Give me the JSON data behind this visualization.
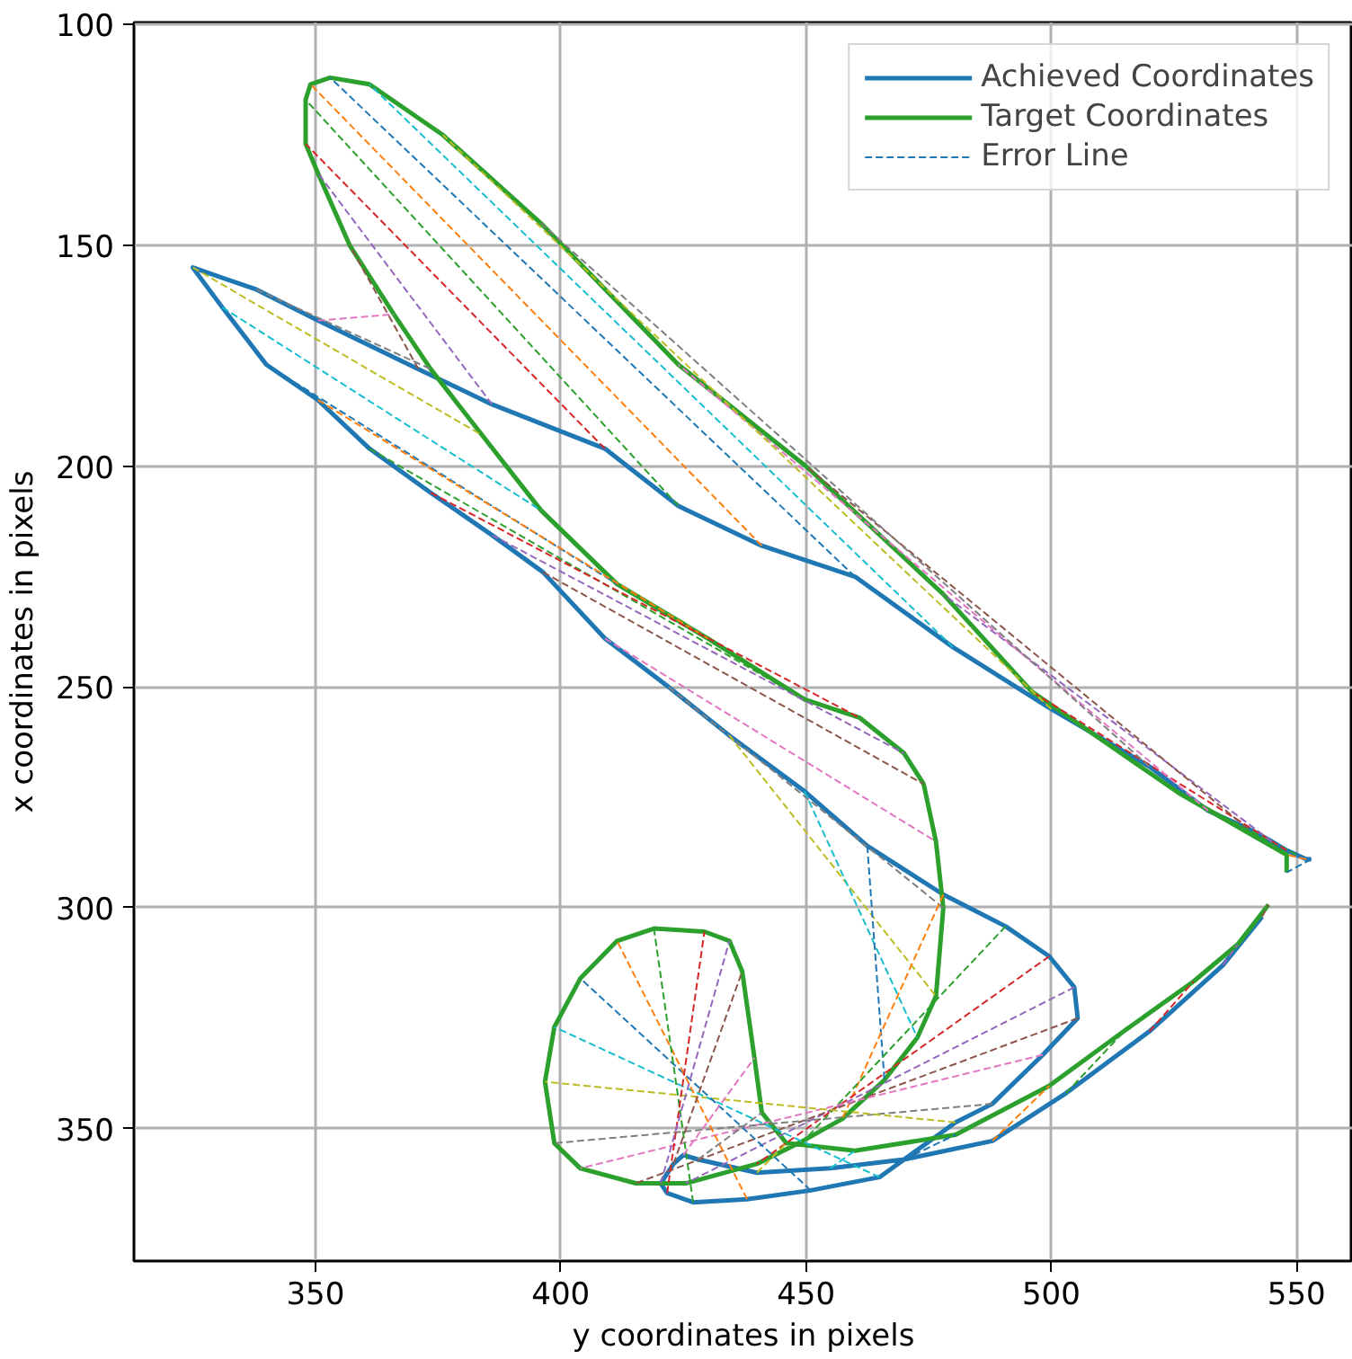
{
  "chart_data": {
    "type": "line",
    "xlabel": "y coordinates in pixels",
    "ylabel": "x coordinates in pixels",
    "xlim": [
      313,
      561.5
    ],
    "ylim": [
      380,
      99.5
    ],
    "xticks": [
      350,
      400,
      450,
      500,
      550
    ],
    "yticks": [
      100,
      150,
      200,
      250,
      300,
      350
    ],
    "grid": true,
    "legend": "top right",
    "marker": "none",
    "series": [
      {
        "name": "Achieved Coordinates",
        "color": "#1f77b4",
        "line_style": "solid",
        "x": [
          553,
          552,
          550,
          548,
          545,
          540,
          532,
          520,
          500,
          480,
          460,
          441,
          424,
          409,
          386,
          371,
          350.5,
          338,
          325,
          331,
          340,
          350.5,
          361,
          373.5,
          386,
          396.4,
          409,
          422,
          434.4,
          449.7,
          462.5,
          478,
          490.7,
          499.6,
          504.7,
          505.4,
          498.3,
          488,
          480.5,
          465,
          451,
          438,
          427,
          421.7,
          420.4,
          423,
          425,
          428,
          440,
          455,
          470,
          488,
          503,
          520,
          535,
          543
        ],
        "values": [
          289,
          289,
          288,
          287,
          285,
          282,
          278,
          268,
          255,
          241,
          225,
          218,
          209,
          196,
          186,
          178,
          167,
          160,
          155,
          164,
          177,
          185,
          196,
          206,
          215.6,
          224,
          239,
          250,
          261,
          273.6,
          286,
          297,
          304.2,
          311,
          318,
          325,
          333.3,
          344.4,
          348.6,
          361,
          364,
          366,
          366.7,
          364.6,
          362.4,
          358,
          356,
          357,
          360,
          359,
          357,
          352.8,
          342,
          328,
          313,
          302
        ]
      },
      {
        "name": "Target Coordinates",
        "color": "#2ca02c",
        "line_style": "solid",
        "x": [
          548,
          548,
          526,
          496,
          478,
          450,
          424,
          396,
          376,
          361,
          353,
          349,
          348,
          348,
          350.5,
          357,
          366,
          373.5,
          384,
          396,
          411.5,
          430,
          449.7,
          461,
          470,
          474,
          476.5,
          478,
          476.5,
          472.7,
          466,
          457.4,
          449.7,
          440,
          425.5,
          415.3,
          404,
          398.7,
          396.8,
          398.7,
          404,
          411.5,
          419,
          429.3,
          434.4,
          437,
          439.5,
          441,
          446,
          460,
          480.5,
          499.6,
          515,
          529,
          538,
          544.3
        ],
        "values": [
          292,
          288,
          274,
          251,
          229,
          200,
          177,
          145,
          125,
          113.5,
          112,
          113.5,
          117,
          127,
          133.6,
          150,
          165.6,
          178,
          193,
          210,
          226.7,
          239,
          252.8,
          257,
          265,
          272,
          285,
          300,
          320,
          329.4,
          339,
          347.8,
          352.6,
          358,
          362.4,
          362.4,
          359,
          353.3,
          339.4,
          327,
          316,
          307.5,
          304.7,
          305.4,
          307.5,
          314.4,
          334,
          346.4,
          353.3,
          355,
          351.4,
          340.3,
          327.8,
          316.7,
          308.3,
          299.3
        ]
      },
      {
        "name": "Error Line",
        "line_style": "dashed",
        "color": "#1f77b4",
        "x": [
          553,
          548
        ],
        "values": [
          289,
          292
        ]
      },
      {
        "line_style": "dashed",
        "color": "#ff7f0e",
        "x": [
          552,
          548
        ],
        "values": [
          289,
          288
        ]
      },
      {
        "line_style": "dashed",
        "color": "#2ca02c",
        "x": [
          550,
          526
        ],
        "values": [
          288,
          274
        ]
      },
      {
        "line_style": "dashed",
        "color": "#d62728",
        "x": [
          548,
          496
        ],
        "values": [
          287,
          251
        ]
      },
      {
        "line_style": "dashed",
        "color": "#9467bd",
        "x": [
          545,
          478
        ],
        "values": [
          285,
          229
        ]
      },
      {
        "line_style": "dashed",
        "color": "#8c564b",
        "x": [
          540,
          450
        ],
        "values": [
          282,
          200
        ]
      },
      {
        "line_style": "dashed",
        "color": "#e377c2",
        "x": [
          532,
          424
        ],
        "values": [
          278,
          177
        ]
      },
      {
        "line_style": "dashed",
        "color": "#7f7f7f",
        "x": [
          520,
          396
        ],
        "values": [
          268,
          145
        ]
      },
      {
        "line_style": "dashed",
        "color": "#bcbd22",
        "x": [
          500,
          376
        ],
        "values": [
          255,
          125
        ]
      },
      {
        "line_style": "dashed",
        "color": "#17becf",
        "x": [
          480,
          361
        ],
        "values": [
          241,
          113.5
        ]
      },
      {
        "line_style": "dashed",
        "color": "#1f77b4",
        "x": [
          460,
          353
        ],
        "values": [
          225,
          112
        ]
      },
      {
        "line_style": "dashed",
        "color": "#ff7f0e",
        "x": [
          441,
          349
        ],
        "values": [
          218,
          113.5
        ]
      },
      {
        "line_style": "dashed",
        "color": "#2ca02c",
        "x": [
          424,
          348
        ],
        "values": [
          209,
          117
        ]
      },
      {
        "line_style": "dashed",
        "color": "#d62728",
        "x": [
          409,
          348
        ],
        "values": [
          196,
          127
        ]
      },
      {
        "line_style": "dashed",
        "color": "#9467bd",
        "x": [
          386,
          350.5
        ],
        "values": [
          186,
          133.6
        ]
      },
      {
        "line_style": "dashed",
        "color": "#8c564b",
        "x": [
          371,
          357
        ],
        "values": [
          178,
          150
        ]
      },
      {
        "line_style": "dashed",
        "color": "#e377c2",
        "x": [
          350.5,
          366
        ],
        "values": [
          167,
          165.6
        ]
      },
      {
        "line_style": "dashed",
        "color": "#7f7f7f",
        "x": [
          338,
          373.5
        ],
        "values": [
          160,
          178
        ]
      },
      {
        "line_style": "dashed",
        "color": "#bcbd22",
        "x": [
          325,
          384
        ],
        "values": [
          155,
          193
        ]
      },
      {
        "line_style": "dashed",
        "color": "#17becf",
        "x": [
          331,
          396
        ],
        "values": [
          164,
          210
        ]
      },
      {
        "line_style": "dashed",
        "color": "#1f77b4",
        "x": [
          340,
          411.5
        ],
        "values": [
          177,
          226.7
        ]
      },
      {
        "line_style": "dashed",
        "color": "#ff7f0e",
        "x": [
          350.5,
          430
        ],
        "values": [
          185,
          239
        ]
      },
      {
        "line_style": "dashed",
        "color": "#2ca02c",
        "x": [
          361,
          449.7
        ],
        "values": [
          196,
          252.8
        ]
      },
      {
        "line_style": "dashed",
        "color": "#d62728",
        "x": [
          373.5,
          461
        ],
        "values": [
          206,
          257
        ]
      },
      {
        "line_style": "dashed",
        "color": "#9467bd",
        "x": [
          386,
          470
        ],
        "values": [
          215.6,
          265
        ]
      },
      {
        "line_style": "dashed",
        "color": "#8c564b",
        "x": [
          396.4,
          474
        ],
        "values": [
          224,
          272
        ]
      },
      {
        "line_style": "dashed",
        "color": "#e377c2",
        "x": [
          409,
          476.5
        ],
        "values": [
          239,
          285
        ]
      },
      {
        "line_style": "dashed",
        "color": "#7f7f7f",
        "x": [
          422,
          478
        ],
        "values": [
          250,
          300
        ]
      },
      {
        "line_style": "dashed",
        "color": "#bcbd22",
        "x": [
          434.4,
          476.5
        ],
        "values": [
          261,
          320
        ]
      },
      {
        "line_style": "dashed",
        "color": "#17becf",
        "x": [
          449.7,
          472.7
        ],
        "values": [
          273.6,
          329.4
        ]
      },
      {
        "line_style": "dashed",
        "color": "#1f77b4",
        "x": [
          462.5,
          466
        ],
        "values": [
          286,
          339
        ]
      },
      {
        "line_style": "dashed",
        "color": "#ff7f0e",
        "x": [
          478,
          457.4
        ],
        "values": [
          297,
          347.8
        ]
      },
      {
        "line_style": "dashed",
        "color": "#2ca02c",
        "x": [
          490.7,
          449.7
        ],
        "values": [
          304.2,
          352.6
        ]
      },
      {
        "line_style": "dashed",
        "color": "#d62728",
        "x": [
          499.6,
          440
        ],
        "values": [
          311,
          358
        ]
      },
      {
        "line_style": "dashed",
        "color": "#9467bd",
        "x": [
          504.7,
          425.5
        ],
        "values": [
          318,
          362.4
        ]
      },
      {
        "line_style": "dashed",
        "color": "#8c564b",
        "x": [
          505.4,
          415.3
        ],
        "values": [
          325,
          362.4
        ]
      },
      {
        "line_style": "dashed",
        "color": "#e377c2",
        "x": [
          498.3,
          404
        ],
        "values": [
          333.3,
          359
        ]
      },
      {
        "line_style": "dashed",
        "color": "#7f7f7f",
        "x": [
          488,
          398.7
        ],
        "values": [
          344.4,
          353.3
        ]
      },
      {
        "line_style": "dashed",
        "color": "#bcbd22",
        "x": [
          480.5,
          396.8
        ],
        "values": [
          348.6,
          339.4
        ]
      },
      {
        "line_style": "dashed",
        "color": "#17becf",
        "x": [
          465,
          398.7
        ],
        "values": [
          361,
          327
        ]
      },
      {
        "line_style": "dashed",
        "color": "#1f77b4",
        "x": [
          451,
          404
        ],
        "values": [
          364,
          316
        ]
      },
      {
        "line_style": "dashed",
        "color": "#ff7f0e",
        "x": [
          438,
          411.5
        ],
        "values": [
          366,
          307.5
        ]
      },
      {
        "line_style": "dashed",
        "color": "#2ca02c",
        "x": [
          427,
          419
        ],
        "values": [
          366.7,
          304.7
        ]
      },
      {
        "line_style": "dashed",
        "color": "#d62728",
        "x": [
          421.7,
          429.3
        ],
        "values": [
          364.6,
          305.4
        ]
      },
      {
        "line_style": "dashed",
        "color": "#9467bd",
        "x": [
          420.4,
          434.4
        ],
        "values": [
          362.4,
          307.5
        ]
      },
      {
        "line_style": "dashed",
        "color": "#8c564b",
        "x": [
          423,
          437
        ],
        "values": [
          358,
          314.4
        ]
      },
      {
        "line_style": "dashed",
        "color": "#e377c2",
        "x": [
          425,
          439.5
        ],
        "values": [
          356,
          334
        ]
      },
      {
        "line_style": "dashed",
        "color": "#7f7f7f",
        "x": [
          428,
          441
        ],
        "values": [
          357,
          346.4
        ]
      },
      {
        "line_style": "dashed",
        "color": "#bcbd22",
        "x": [
          440,
          446
        ],
        "values": [
          360,
          353.3
        ]
      },
      {
        "line_style": "dashed",
        "color": "#17becf",
        "x": [
          455,
          460
        ],
        "values": [
          359,
          355
        ]
      },
      {
        "line_style": "dashed",
        "color": "#1f77b4",
        "x": [
          470,
          480.5
        ],
        "values": [
          357,
          351.4
        ]
      },
      {
        "line_style": "dashed",
        "color": "#ff7f0e",
        "x": [
          488,
          499.6
        ],
        "values": [
          352.8,
          340.3
        ]
      },
      {
        "line_style": "dashed",
        "color": "#2ca02c",
        "x": [
          503,
          515
        ],
        "values": [
          342,
          327.8
        ]
      },
      {
        "line_style": "dashed",
        "color": "#d62728",
        "x": [
          520,
          529
        ],
        "values": [
          328,
          316.7
        ]
      },
      {
        "line_style": "dashed",
        "color": "#9467bd",
        "x": [
          535,
          538
        ],
        "values": [
          313,
          308.3
        ]
      },
      {
        "line_style": "dashed",
        "color": "#8c564b",
        "x": [
          543,
          544.3
        ],
        "values": [
          302,
          299.3
        ]
      }
    ]
  }
}
